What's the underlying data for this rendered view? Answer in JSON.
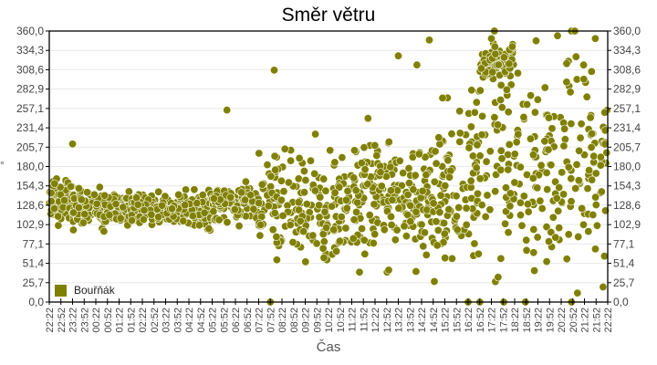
{
  "chart_data": {
    "type": "scatter",
    "title": "Směr větru",
    "xlabel": "Čas",
    "ylabel": "°",
    "ylim": [
      0,
      360
    ],
    "y_ticks": [
      "0,0",
      "25,7",
      "51,4",
      "77,1",
      "102,9",
      "128,6",
      "154,3",
      "180,0",
      "205,7",
      "231,4",
      "257,1",
      "282,9",
      "308,6",
      "334,3",
      "360,0"
    ],
    "x_ticks": [
      "22:22",
      "22:52",
      "23:22",
      "23:52",
      "00:22",
      "00:52",
      "01:22",
      "01:52",
      "02:22",
      "02:52",
      "03:22",
      "03:52",
      "04:22",
      "04:52",
      "05:22",
      "05:52",
      "06:22",
      "06:52",
      "07:22",
      "07:52",
      "08:22",
      "08:52",
      "09:22",
      "09:52",
      "10:22",
      "10:52",
      "11:22",
      "11:52",
      "12:22",
      "12:52",
      "13:22",
      "13:52",
      "14:22",
      "14:52",
      "15:22",
      "15:52",
      "16:22",
      "16:52",
      "17:22",
      "17:52",
      "18:22",
      "18:52",
      "19:22",
      "19:52",
      "20:22",
      "20:52",
      "21:22",
      "21:52",
      "22:22"
    ],
    "grid": true,
    "legend_position": "inside-bottom-left",
    "series": [
      {
        "name": "Bouřňák",
        "color": "#808000",
        "description": "Wind direction samples (degrees) over 24h; dense cluster ~100-160° from 22:22 to 07:00, broad scatter 0-260° from 07:00 to 17:00, then bimodal 0-360° with cluster near 310-350° after 17:00",
        "segments": [
          {
            "from_tick": 0,
            "to_tick": 2,
            "mean": 135,
            "spread": 18,
            "count": 70
          },
          {
            "from_tick": 2,
            "to_tick": 7,
            "mean": 125,
            "spread": 15,
            "count": 150
          },
          {
            "from_tick": 7,
            "to_tick": 14,
            "mean": 122,
            "spread": 14,
            "count": 200
          },
          {
            "from_tick": 14,
            "to_tick": 18,
            "mean": 130,
            "spread": 18,
            "count": 110
          },
          {
            "from_tick": 18,
            "to_tick": 26,
            "mean": 130,
            "spread": 45,
            "count": 200
          },
          {
            "from_tick": 26,
            "to_tick": 33,
            "mean": 140,
            "spread": 55,
            "count": 200
          },
          {
            "from_tick": 33,
            "to_tick": 37,
            "mean": 150,
            "spread": 70,
            "count": 110
          },
          {
            "from_tick": 37,
            "to_tick": 40,
            "mean": 320,
            "spread": 15,
            "count": 90
          },
          {
            "from_tick": 37,
            "to_tick": 48,
            "mean": 180,
            "spread": 100,
            "count": 230
          }
        ],
        "sample_points": [
          {
            "time": "08:02",
            "value": 308
          },
          {
            "time": "14:42",
            "value": 348
          },
          {
            "time": "13:22",
            "value": 327
          },
          {
            "time": "14:10",
            "value": 315
          },
          {
            "time": "06:00",
            "value": 255
          },
          {
            "time": "23:22",
            "value": 210
          },
          {
            "time": "07:52",
            "value": 0
          },
          {
            "time": "16:22",
            "value": 0
          },
          {
            "time": "16:52",
            "value": 0
          },
          {
            "time": "17:22",
            "value": 350
          },
          {
            "time": "21:50",
            "value": 350
          },
          {
            "time": "22:10",
            "value": 20
          }
        ]
      }
    ]
  },
  "legend": {
    "label": "Bouřňák",
    "color": "#808000"
  }
}
